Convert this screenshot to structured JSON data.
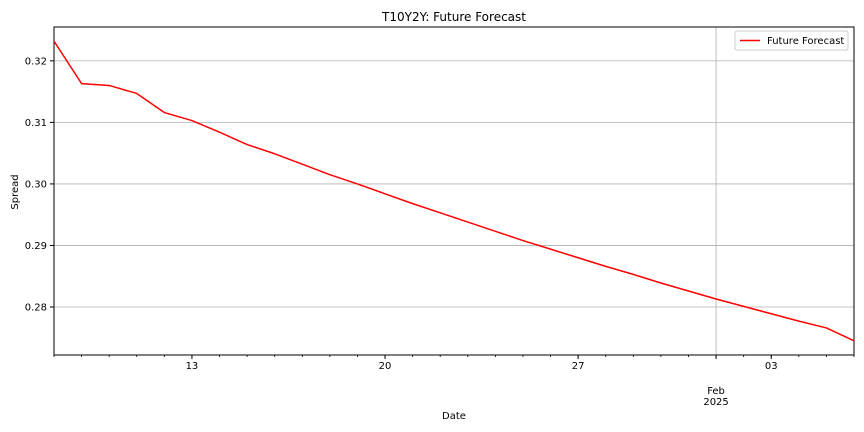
{
  "chart_data": {
    "type": "line",
    "title": "T10Y2Y: Future Forecast",
    "xlabel": "Date",
    "ylabel": "Spread",
    "x_type": "date",
    "xlim": [
      "2025-01-08",
      "2025-02-06"
    ],
    "ylim": [
      0.2722,
      0.3255
    ],
    "grid": true,
    "legend_position": "top-right",
    "x_ticks": [
      {
        "date": "2025-01-13",
        "label": "13"
      },
      {
        "date": "2025-01-20",
        "label": "20"
      },
      {
        "date": "2025-01-27",
        "label": "27"
      },
      {
        "date": "2025-02-01",
        "label": "Feb",
        "sublabel": "2025"
      },
      {
        "date": "2025-02-03",
        "label": "03"
      }
    ],
    "y_ticks": [
      0.28,
      0.29,
      0.3,
      0.31,
      0.32
    ],
    "y_tick_labels": [
      "0.28",
      "0.29",
      "0.30",
      "0.31",
      "0.32"
    ],
    "series": [
      {
        "name": "Future Forecast",
        "color": "#ff0000",
        "x": [
          "2025-01-08",
          "2025-01-09",
          "2025-01-10",
          "2025-01-11",
          "2025-01-12",
          "2025-01-13",
          "2025-01-14",
          "2025-01-15",
          "2025-01-16",
          "2025-01-17",
          "2025-01-18",
          "2025-01-19",
          "2025-01-20",
          "2025-01-21",
          "2025-01-22",
          "2025-01-23",
          "2025-01-24",
          "2025-01-25",
          "2025-01-26",
          "2025-01-27",
          "2025-01-28",
          "2025-01-29",
          "2025-01-30",
          "2025-01-31",
          "2025-02-01",
          "2025-02-02",
          "2025-02-03",
          "2025-02-04",
          "2025-02-05",
          "2025-02-06"
        ],
        "y": [
          0.3232,
          0.3163,
          0.316,
          0.3147,
          0.3116,
          0.3103,
          0.3084,
          0.3064,
          0.3049,
          0.3032,
          0.3015,
          0.3,
          0.2984,
          0.2968,
          0.2953,
          0.2938,
          0.2923,
          0.2908,
          0.2894,
          0.288,
          0.2866,
          0.2853,
          0.2839,
          0.2826,
          0.2813,
          0.2801,
          0.2789,
          0.2777,
          0.2766,
          0.2745
        ]
      }
    ]
  }
}
